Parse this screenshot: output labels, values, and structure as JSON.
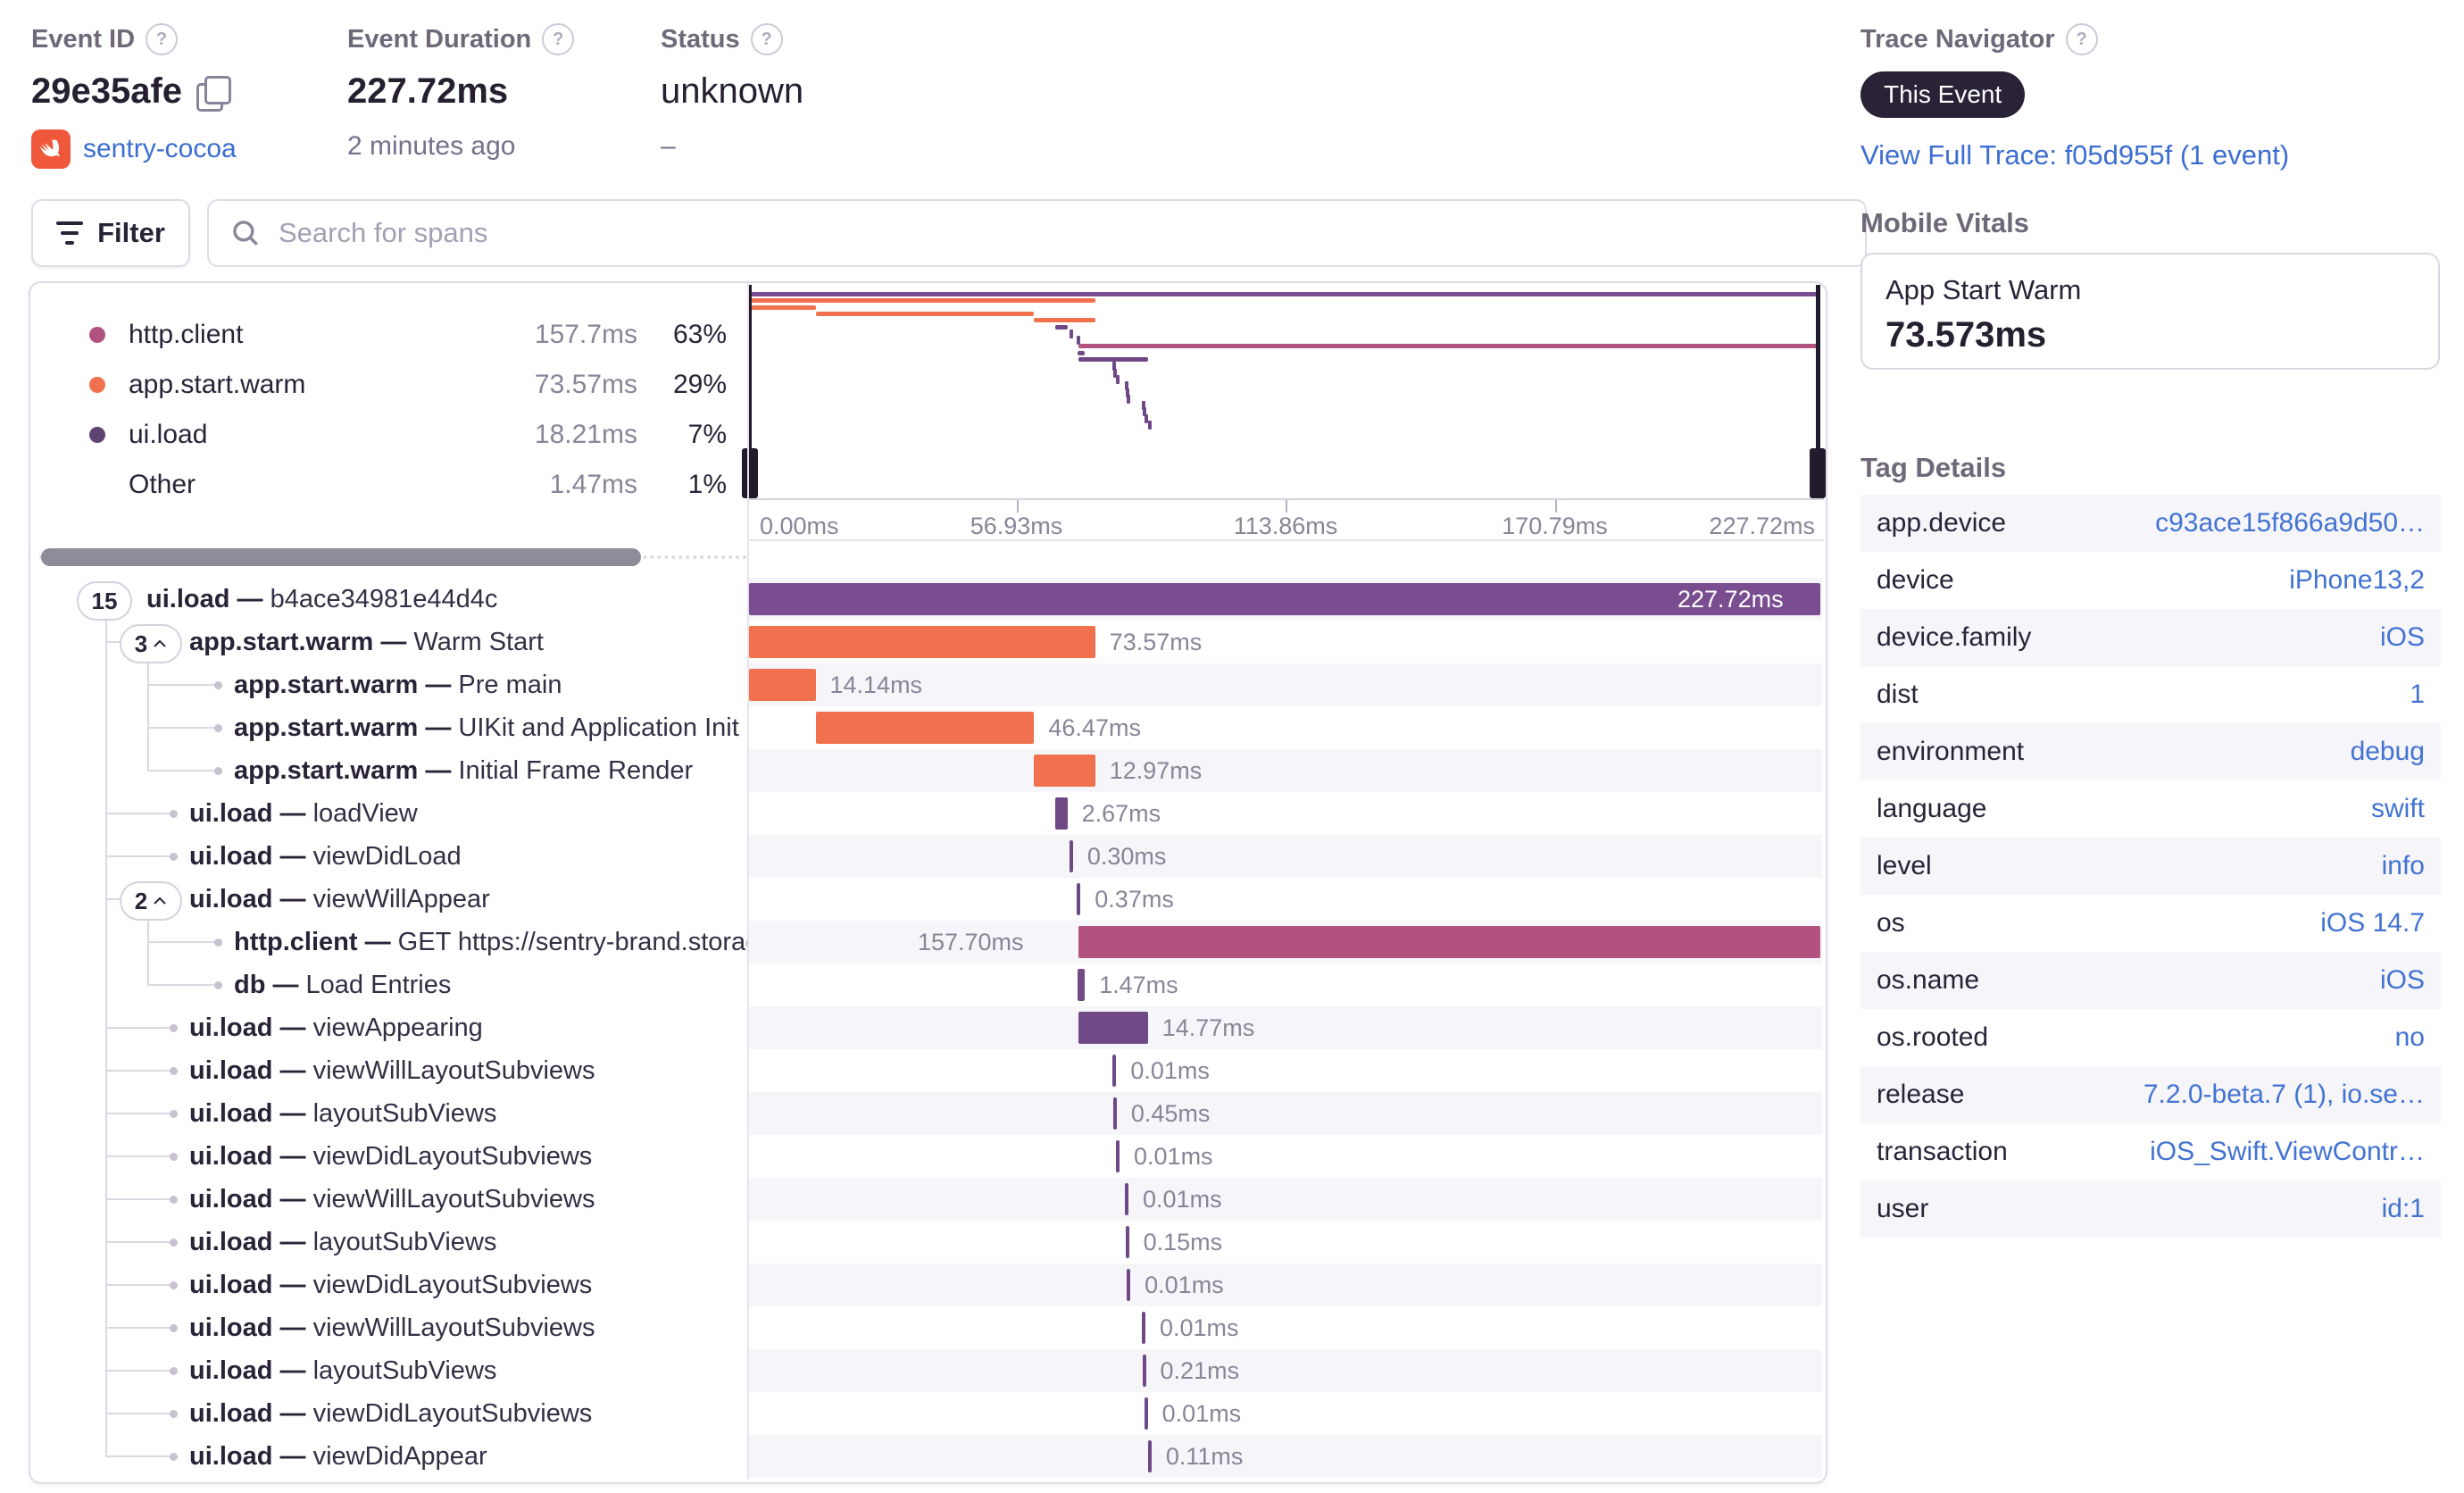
{
  "colors": {
    "ui_load": "#7a4d90",
    "ui_load_small": "#6f4886",
    "app_start": "#f1704e",
    "http_client": "#b2537f",
    "db": "#744a86",
    "stripe": "#f6f5f9",
    "legend_ui_load_dot": "#5f4373",
    "link_blue": "#3b6ed0"
  },
  "header": {
    "event_id": {
      "label": "Event ID",
      "value": "29e35afe",
      "project": "sentry-cocoa"
    },
    "event_duration": {
      "label": "Event Duration",
      "value": "227.72ms",
      "subtext": "2 minutes ago"
    },
    "status": {
      "label": "Status",
      "value": "unknown",
      "subtext": "–"
    },
    "trace_navigator": {
      "label": "Trace Navigator",
      "badge": "This Event",
      "link": "View Full Trace: f05d955f (1 event)"
    }
  },
  "toolbar": {
    "filter_label": "Filter",
    "search_placeholder": "Search for spans"
  },
  "legend": {
    "items": [
      {
        "op": "http.client",
        "duration": "157.7ms",
        "percent": "63%",
        "dot": "#b2537f"
      },
      {
        "op": "app.start.warm",
        "duration": "73.57ms",
        "percent": "29%",
        "dot": "#f1704e"
      },
      {
        "op": "ui.load",
        "duration": "18.21ms",
        "percent": "7%",
        "dot": "#5f4373"
      },
      {
        "op": "Other",
        "duration": "1.47ms",
        "percent": "1%",
        "dot": null
      }
    ]
  },
  "minimap": {
    "total_ms": 227.72,
    "axis_ticks": [
      "0.00ms",
      "56.93ms",
      "113.86ms",
      "170.79ms",
      "227.72ms"
    ]
  },
  "spans": [
    {
      "pill": "15",
      "chevron": false,
      "level": 0,
      "op": "ui.load",
      "desc": "b4ace34981e44d4c",
      "duration": "227.72ms",
      "start": 0,
      "dur": 227.72,
      "color": "ui_load",
      "label_pos": "inside"
    },
    {
      "pill": "3",
      "chevron": true,
      "level": 1,
      "op": "app.start.warm",
      "desc": "Warm Start",
      "duration": "73.57ms",
      "start": 0,
      "dur": 73.57,
      "color": "app_start",
      "label_pos": "right"
    },
    {
      "level": 2,
      "op": "app.start.warm",
      "desc": "Pre main",
      "duration": "14.14ms",
      "start": 0,
      "dur": 14.14,
      "color": "app_start",
      "label_pos": "right"
    },
    {
      "level": 2,
      "op": "app.start.warm",
      "desc": "UIKit and Application Init",
      "duration": "46.47ms",
      "start": 14.14,
      "dur": 46.47,
      "color": "app_start",
      "label_pos": "right"
    },
    {
      "level": 2,
      "op": "app.start.warm",
      "desc": "Initial Frame Render",
      "duration": "12.97ms",
      "start": 60.61,
      "dur": 12.97,
      "color": "app_start",
      "label_pos": "right"
    },
    {
      "level": 1,
      "op": "ui.load",
      "desc": "loadView",
      "duration": "2.67ms",
      "start": 65.0,
      "dur": 2.67,
      "color": "ui_load_small",
      "label_pos": "right"
    },
    {
      "level": 1,
      "op": "ui.load",
      "desc": "viewDidLoad",
      "duration": "0.30ms",
      "start": 68.1,
      "dur": 0.3,
      "color": "ui_load_small",
      "label_pos": "right"
    },
    {
      "pill": "2",
      "chevron": true,
      "level": 1,
      "op": "ui.load",
      "desc": "viewWillAppear",
      "duration": "0.37ms",
      "start": 69.7,
      "dur": 0.37,
      "color": "ui_load_small",
      "label_pos": "right"
    },
    {
      "level": 2,
      "op": "http.client",
      "desc": "GET https://sentry-brand.storage.googlea",
      "duration": "157.70ms",
      "start": 70.02,
      "dur": 157.7,
      "color": "http_client",
      "label_pos": "left"
    },
    {
      "level": 2,
      "op": "db",
      "desc": "Load Entries",
      "duration": "1.47ms",
      "start": 69.9,
      "dur": 1.47,
      "color": "db",
      "label_pos": "right"
    },
    {
      "level": 1,
      "op": "ui.load",
      "desc": "viewAppearing",
      "duration": "14.77ms",
      "start": 70.0,
      "dur": 14.77,
      "color": "ui_load_small",
      "label_pos": "right"
    },
    {
      "level": 1,
      "op": "ui.load",
      "desc": "viewWillLayoutSubviews",
      "duration": "0.01ms",
      "start": 77.3,
      "dur": 0.01,
      "color": "ui_load_small",
      "label_pos": "right"
    },
    {
      "level": 1,
      "op": "ui.load",
      "desc": "layoutSubViews",
      "duration": "0.45ms",
      "start": 77.4,
      "dur": 0.45,
      "color": "ui_load_small",
      "label_pos": "right"
    },
    {
      "level": 1,
      "op": "ui.load",
      "desc": "viewDidLayoutSubviews",
      "duration": "0.01ms",
      "start": 78.0,
      "dur": 0.01,
      "color": "ui_load_small",
      "label_pos": "right"
    },
    {
      "level": 1,
      "op": "ui.load",
      "desc": "viewWillLayoutSubviews",
      "duration": "0.01ms",
      "start": 79.9,
      "dur": 0.01,
      "color": "ui_load_small",
      "label_pos": "right"
    },
    {
      "level": 1,
      "op": "ui.load",
      "desc": "layoutSubViews",
      "duration": "0.15ms",
      "start": 80.0,
      "dur": 0.15,
      "color": "ui_load_small",
      "label_pos": "right"
    },
    {
      "level": 1,
      "op": "ui.load",
      "desc": "viewDidLayoutSubviews",
      "duration": "0.01ms",
      "start": 80.3,
      "dur": 0.01,
      "color": "ui_load_small",
      "label_pos": "right"
    },
    {
      "level": 1,
      "op": "ui.load",
      "desc": "viewWillLayoutSubviews",
      "duration": "0.01ms",
      "start": 83.5,
      "dur": 0.01,
      "color": "ui_load_small",
      "label_pos": "right"
    },
    {
      "level": 1,
      "op": "ui.load",
      "desc": "layoutSubViews",
      "duration": "0.21ms",
      "start": 83.6,
      "dur": 0.21,
      "color": "ui_load_small",
      "label_pos": "right"
    },
    {
      "level": 1,
      "op": "ui.load",
      "desc": "viewDidLayoutSubviews",
      "duration": "0.01ms",
      "start": 84.0,
      "dur": 0.01,
      "color": "ui_load_small",
      "label_pos": "right"
    },
    {
      "level": 1,
      "op": "ui.load",
      "desc": "viewDidAppear",
      "duration": "0.11ms",
      "start": 84.8,
      "dur": 0.11,
      "color": "ui_load_small",
      "label_pos": "right"
    }
  ],
  "sidebar": {
    "mobile_vitals": {
      "heading": "Mobile Vitals",
      "card": {
        "title": "App Start Warm",
        "value": "73.573ms"
      }
    },
    "tag_details": {
      "heading": "Tag Details",
      "rows": [
        {
          "key": "app.device",
          "value": "c93ace15f866a9d50…"
        },
        {
          "key": "device",
          "value": "iPhone13,2"
        },
        {
          "key": "device.family",
          "value": "iOS"
        },
        {
          "key": "dist",
          "value": "1"
        },
        {
          "key": "environment",
          "value": "debug"
        },
        {
          "key": "language",
          "value": "swift"
        },
        {
          "key": "level",
          "value": "info"
        },
        {
          "key": "os",
          "value": "iOS 14.7"
        },
        {
          "key": "os.name",
          "value": "iOS"
        },
        {
          "key": "os.rooted",
          "value": "no"
        },
        {
          "key": "release",
          "value": "7.2.0-beta.7 (1), io.se…"
        },
        {
          "key": "transaction",
          "value": "iOS_Swift.ViewContr…"
        },
        {
          "key": "user",
          "value": "id:1"
        }
      ]
    }
  }
}
